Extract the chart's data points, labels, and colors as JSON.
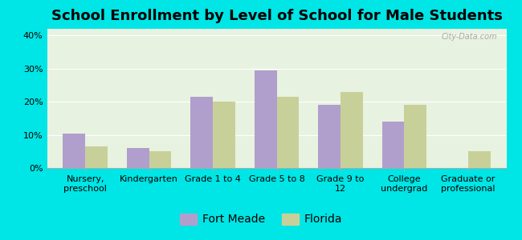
{
  "title": "School Enrollment by Level of School for Male Students",
  "categories": [
    "Nursery,\npreschool",
    "Kindergarten",
    "Grade 1 to 4",
    "Grade 5 to 8",
    "Grade 9 to\n12",
    "College\nundergrad",
    "Graduate or\nprofessional"
  ],
  "fort_meade": [
    10.5,
    6.0,
    21.5,
    29.5,
    19.0,
    14.0,
    0.0
  ],
  "florida": [
    6.5,
    5.0,
    20.0,
    21.5,
    23.0,
    19.0,
    5.0
  ],
  "fort_meade_color": "#b09fcc",
  "florida_color": "#c8d09a",
  "background_outer": "#00e5e5",
  "background_plot": "#e8f2e0",
  "ylim": [
    0,
    42
  ],
  "yticks": [
    0,
    10,
    20,
    30,
    40
  ],
  "ytick_labels": [
    "0%",
    "10%",
    "20%",
    "30%",
    "40%"
  ],
  "legend_label_1": "Fort Meade",
  "legend_label_2": "Florida",
  "bar_width": 0.35,
  "title_fontsize": 13,
  "tick_fontsize": 8,
  "legend_fontsize": 10
}
